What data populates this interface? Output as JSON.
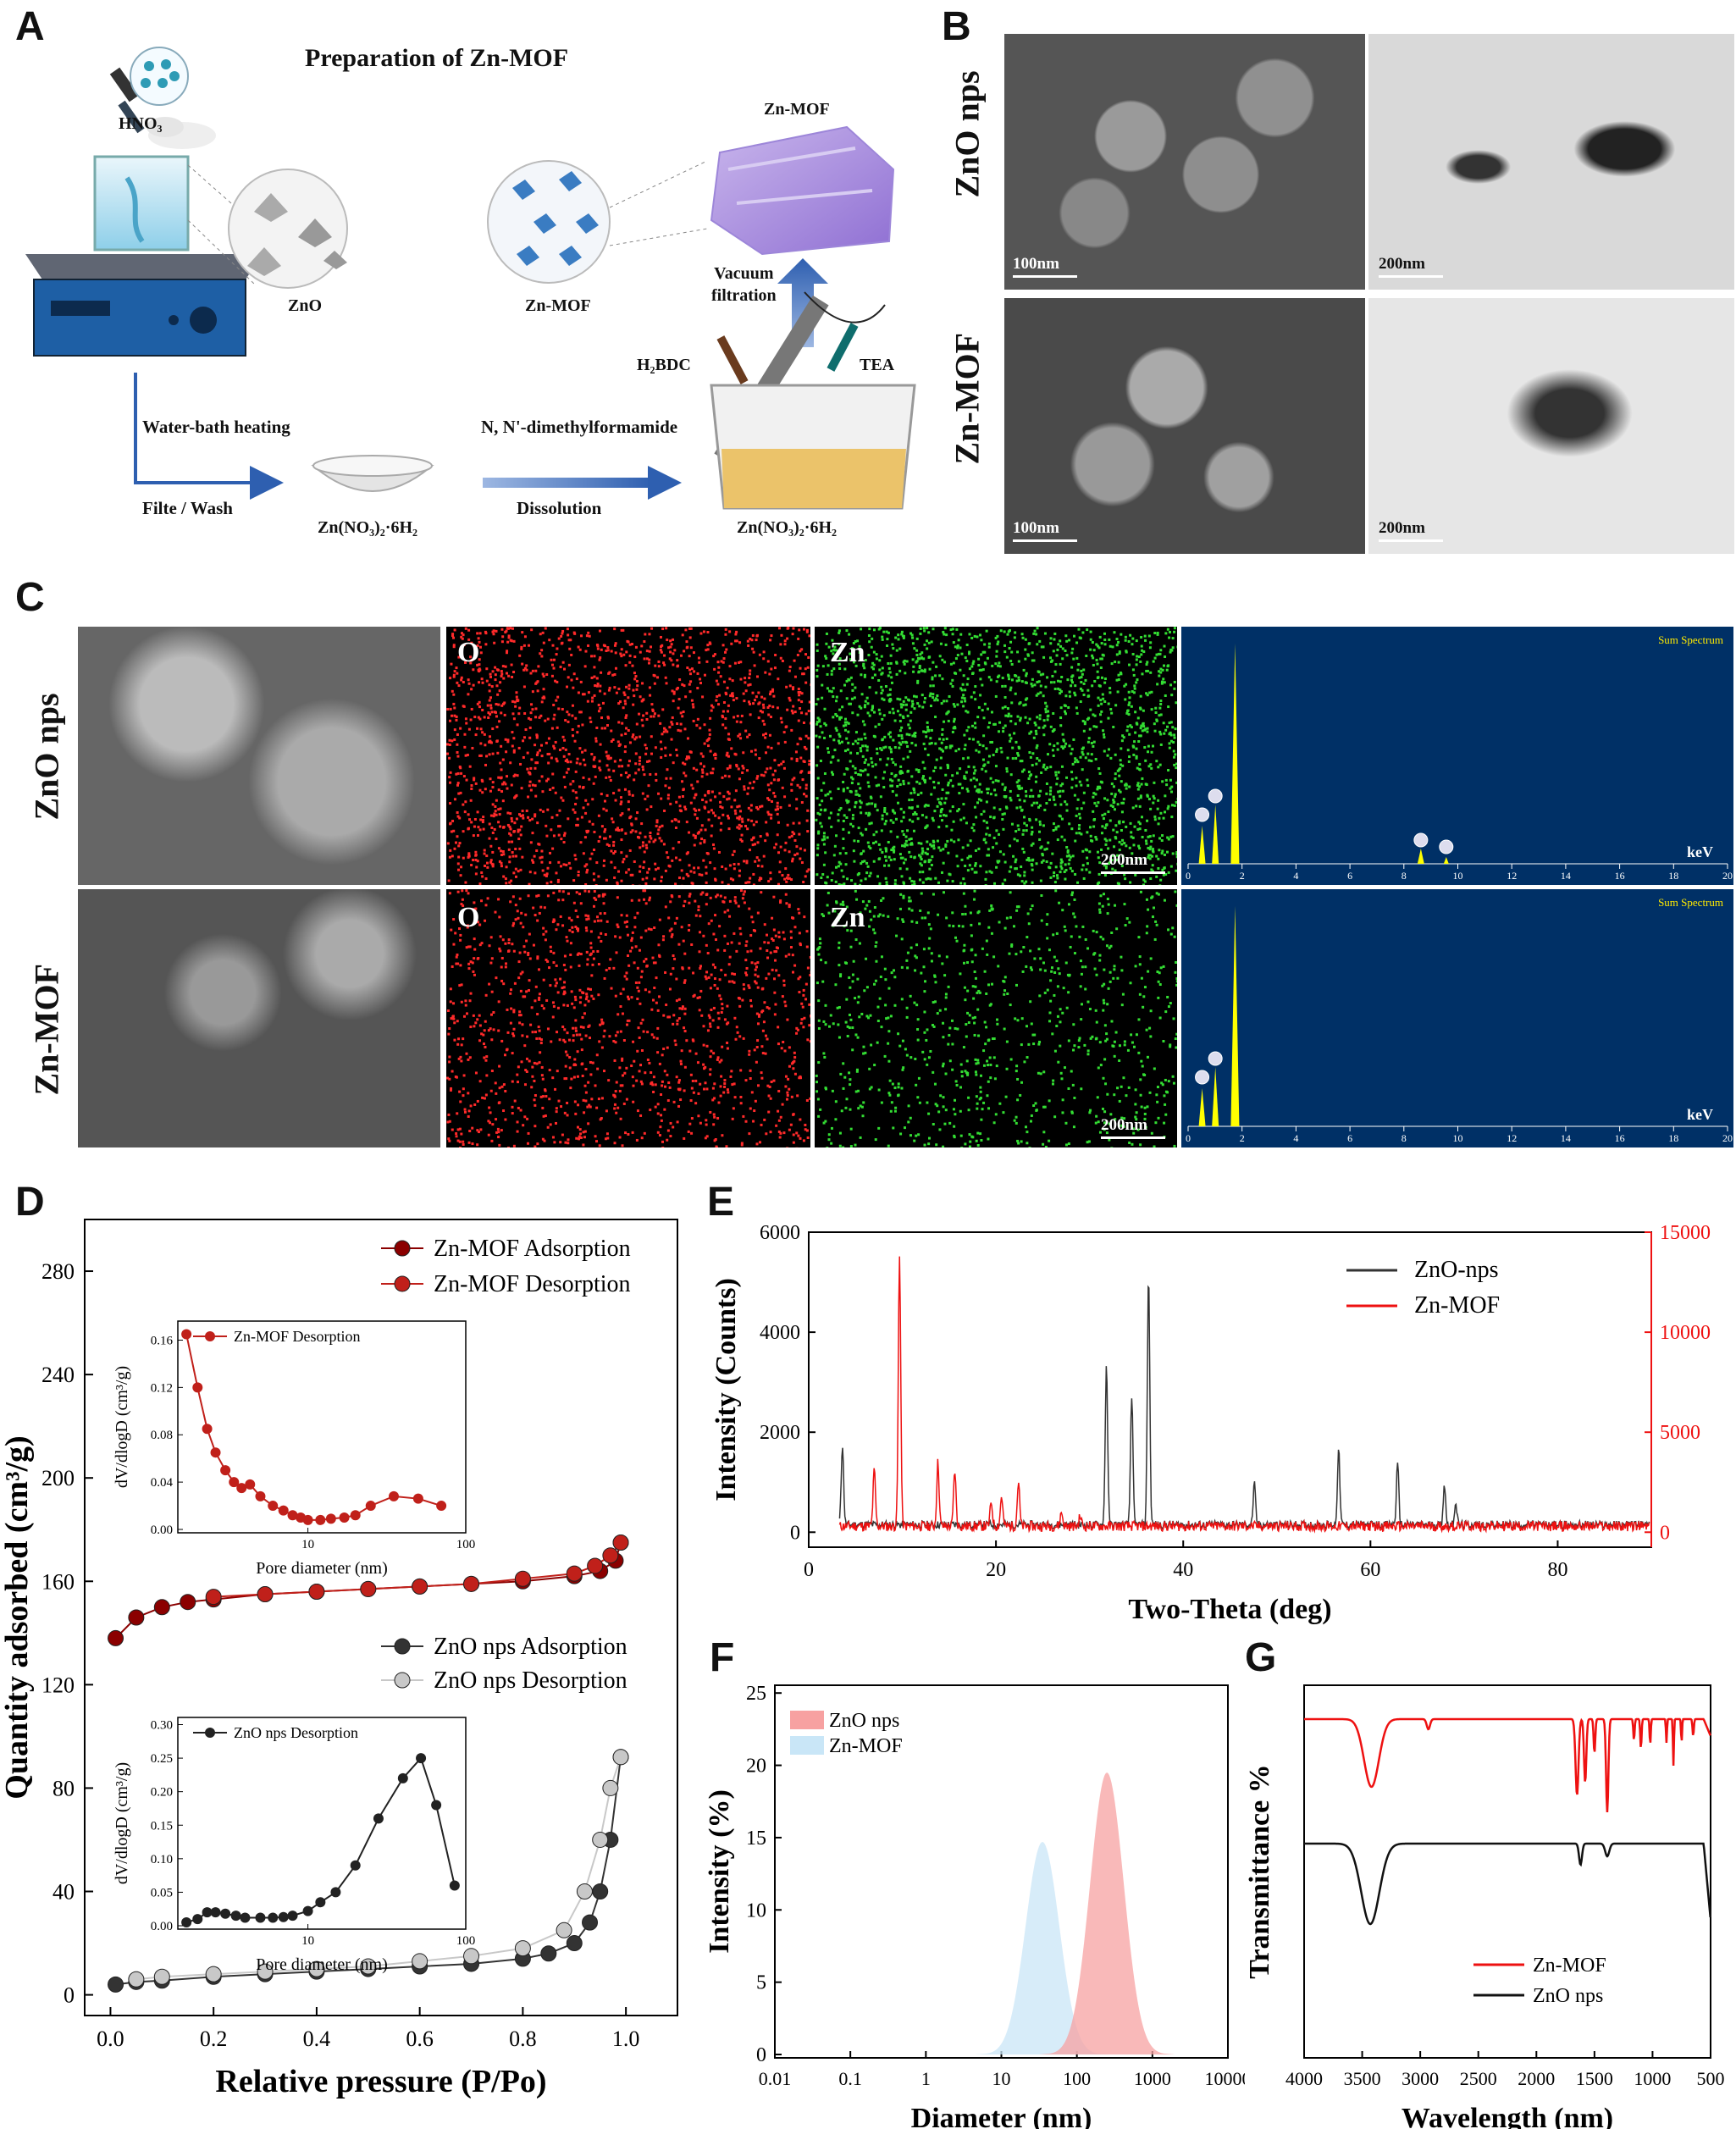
{
  "panels": {
    "A": "A",
    "B": "B",
    "C": "C",
    "D": "D",
    "E": "E",
    "F": "F",
    "G": "G"
  },
  "panelA": {
    "title": "Preparation of Zn-MOF",
    "hno3": "HNO₃",
    "zno": "ZnO",
    "znmof_crystal": "Zn-MOF",
    "znmof_film": "Zn-MOF",
    "vacuum": "Vacuum\nfiltration",
    "h2bdc": "H₂BDC",
    "tea": "TEA",
    "water_bath": "Water-bath heating",
    "filte": "Filte / Wash",
    "salt1": "Zn(NO₃)₂·6H₂",
    "dmf": "N, N'-dimethylformamide",
    "dissolution": "Dissolution",
    "salt2": "Zn(NO₃)₂·6H₂"
  },
  "panelB": {
    "row1": "ZnO nps",
    "row2": "Zn-MOF",
    "sem_scale": "100nm",
    "tem_scale": "200nm"
  },
  "panelC": {
    "row1": "ZnO nps",
    "row2": "Zn-MOF",
    "map_o": "O",
    "map_zn": "Zn",
    "scale": "200nm",
    "spectrum_title": "Sum Spectrum",
    "unit": "keV",
    "ticks": [
      "0",
      "2",
      "4",
      "6",
      "8",
      "10",
      "12",
      "14",
      "16",
      "18",
      "20"
    ],
    "colors": {
      "o": "#ff2a2a",
      "zn": "#33dd33",
      "spectrum_bg": "#003066",
      "peak": "#ffff00"
    }
  },
  "chart_data": [
    {
      "id": "D",
      "type": "scatter",
      "xlabel": "Relative pressure (P/Po)",
      "ylabel": "Quantity adsorbed (cm³/g)",
      "xlim": [
        -0.05,
        1.1
      ],
      "ylim": [
        -8,
        300
      ],
      "xticks": [
        "0.0",
        "0.2",
        "0.4",
        "0.6",
        "0.8",
        "1.0"
      ],
      "yticks": [
        "0",
        "40",
        "80",
        "120",
        "160",
        "200",
        "240",
        "280"
      ],
      "series": [
        {
          "name": "Zn-MOF Adsorption",
          "x": [
            0.01,
            0.05,
            0.1,
            0.15,
            0.2,
            0.3,
            0.4,
            0.5,
            0.6,
            0.7,
            0.8,
            0.9,
            0.95,
            0.98,
            0.99
          ],
          "y": [
            138,
            146,
            150,
            152,
            153,
            155,
            156,
            157,
            158,
            159,
            160,
            162,
            164,
            168,
            175
          ]
        },
        {
          "name": "Zn-MOF Desorption",
          "x": [
            0.99,
            0.97,
            0.94,
            0.9,
            0.8,
            0.7,
            0.6,
            0.5,
            0.4,
            0.3,
            0.2
          ],
          "y": [
            175,
            170,
            166,
            163,
            161,
            159,
            158,
            157,
            156,
            155,
            154
          ]
        },
        {
          "name": "ZnO nps Adsorption",
          "x": [
            0.01,
            0.05,
            0.1,
            0.2,
            0.3,
            0.4,
            0.5,
            0.6,
            0.7,
            0.8,
            0.85,
            0.9,
            0.93,
            0.95,
            0.97,
            0.99
          ],
          "y": [
            4,
            5,
            5.5,
            7,
            8,
            9,
            10,
            11,
            12,
            14,
            16,
            20,
            28,
            40,
            60,
            92
          ]
        },
        {
          "name": "ZnO nps Desorption",
          "x": [
            0.99,
            0.97,
            0.95,
            0.92,
            0.88,
            0.8,
            0.7,
            0.6,
            0.5,
            0.4,
            0.3,
            0.2,
            0.1,
            0.05
          ],
          "y": [
            92,
            80,
            60,
            40,
            25,
            18,
            15,
            13,
            11,
            10,
            9,
            8,
            7,
            6
          ]
        }
      ],
      "insets": [
        {
          "series": "Zn-MOF Desorption",
          "ylabel": "dV/dlogD (cm³/g)",
          "xlabel": "Pore diameter (nm)",
          "yticks": [
            "0.00",
            "0.04",
            "0.08",
            "0.12",
            "0.16"
          ],
          "xticks": [
            "10",
            "100"
          ],
          "x": [
            1.7,
            2,
            2.3,
            2.6,
            3,
            3.4,
            3.8,
            4.3,
            5,
            6,
            7,
            8,
            9,
            10,
            12,
            14,
            17,
            20,
            25,
            35,
            50,
            70
          ],
          "y": [
            0.165,
            0.12,
            0.085,
            0.065,
            0.05,
            0.04,
            0.035,
            0.038,
            0.028,
            0.02,
            0.016,
            0.012,
            0.01,
            0.008,
            0.008,
            0.009,
            0.01,
            0.012,
            0.02,
            0.028,
            0.026,
            0.02
          ]
        },
        {
          "series": "ZnO nps Desorption",
          "ylabel": "dV/dlogD (cm³/g)",
          "xlabel": "Pore diameter (nm)",
          "yticks": [
            "0.00",
            "0.05",
            "0.10",
            "0.15",
            "0.20",
            "0.25",
            "0.30"
          ],
          "xticks": [
            "10",
            "100"
          ],
          "x": [
            1.7,
            2,
            2.3,
            2.6,
            3,
            3.5,
            4,
            5,
            6,
            7,
            8,
            10,
            12,
            15,
            20,
            28,
            40,
            52,
            65,
            85
          ],
          "y": [
            0.005,
            0.01,
            0.02,
            0.02,
            0.018,
            0.015,
            0.012,
            0.012,
            0.012,
            0.013,
            0.015,
            0.022,
            0.035,
            0.05,
            0.09,
            0.16,
            0.22,
            0.25,
            0.18,
            0.06
          ]
        }
      ]
    },
    {
      "id": "E",
      "type": "line",
      "xlabel": "Two-Theta (deg)",
      "ylabel": "Intensity (Counts)",
      "xlim": [
        0,
        90
      ],
      "ylim_left": [
        -300,
        6000
      ],
      "ylim_right": [
        -750,
        15000
      ],
      "xticks": [
        "0",
        "20",
        "40",
        "60",
        "80"
      ],
      "yticks_left": [
        "0",
        "2000",
        "4000",
        "6000"
      ],
      "yticks_right": [
        "0",
        "5000",
        "10000",
        "15000"
      ],
      "series": [
        {
          "name": "ZnO-nps",
          "color": "#333333",
          "peaks": [
            [
              3.6,
              1600
            ],
            [
              31.8,
              3200
            ],
            [
              34.5,
              2600
            ],
            [
              36.3,
              5000
            ],
            [
              47.6,
              800
            ],
            [
              56.6,
              1500
            ],
            [
              62.9,
              1200
            ],
            [
              67.9,
              800
            ],
            [
              69.1,
              450
            ]
          ]
        },
        {
          "name": "Zn-MOF",
          "color": "#ee1111",
          "peaks": [
            [
              7,
              2800
            ],
            [
              9.7,
              13500
            ],
            [
              13.8,
              3200
            ],
            [
              15.6,
              2800
            ],
            [
              19.5,
              1200
            ],
            [
              20.6,
              1500
            ],
            [
              22.4,
              2200
            ],
            [
              27,
              700
            ],
            [
              29,
              500
            ]
          ]
        }
      ]
    },
    {
      "id": "F",
      "type": "area",
      "xlabel": "Diameter (nm)",
      "ylabel": "Intensity (%)",
      "xscale": "log",
      "xlim": [
        0.01,
        10000
      ],
      "ylim": [
        0,
        25
      ],
      "xticks": [
        "0.01",
        "0.1",
        "1",
        "10",
        "100",
        "1000",
        "10000"
      ],
      "yticks": [
        "0",
        "5",
        "10",
        "15",
        "20",
        "25"
      ],
      "series": [
        {
          "name": "ZnO nps",
          "color": "#f7a1a1",
          "peak_x": 250,
          "peak_y": 19.5
        },
        {
          "name": "Zn-MOF",
          "color": "#c9e6f7",
          "peak_x": 35,
          "peak_y": 14.7
        }
      ]
    },
    {
      "id": "G",
      "type": "line",
      "xlabel": "Wavelength (nm)",
      "ylabel": "Transmittance %",
      "xlim": [
        4000,
        500
      ],
      "xticks": [
        "4000",
        "3500",
        "3000",
        "2500",
        "2000",
        "1500",
        "1000",
        "500"
      ],
      "series": [
        {
          "name": "Zn-MOF",
          "color": "#ee1111"
        },
        {
          "name": "ZnO nps",
          "color": "#111111"
        }
      ]
    }
  ]
}
